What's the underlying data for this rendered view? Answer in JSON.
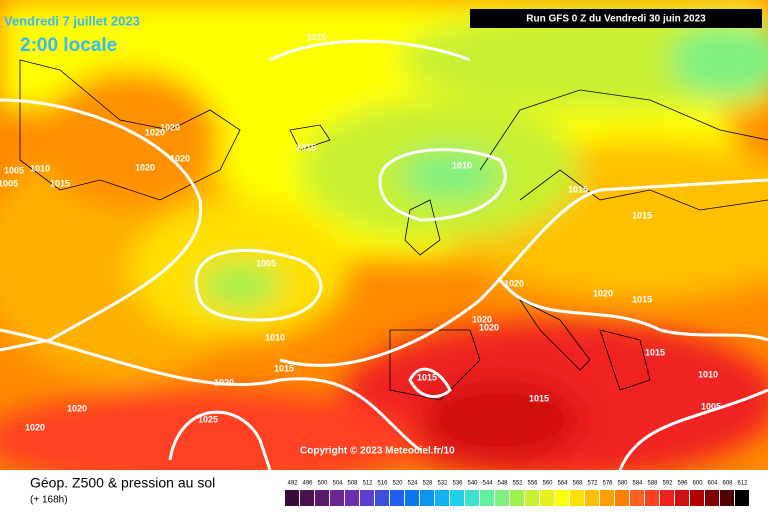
{
  "header": {
    "date": "Vendredi 7 juillet 2023",
    "time": "2:00 locale",
    "run": "Run GFS 0 Z du Vendredi 30 juin 2023"
  },
  "copyright": "Copyright © 2023 Meteociel.fr/10",
  "footer": {
    "title": "Géop. Z500 & pression au sol",
    "subtitle": "(+ 168h)"
  },
  "colorbar": {
    "ticks": [
      492,
      496,
      500,
      504,
      508,
      512,
      516,
      520,
      524,
      528,
      532,
      536,
      540,
      544,
      548,
      552,
      556,
      560,
      564,
      568,
      572,
      576,
      580,
      584,
      588,
      592,
      596,
      600,
      604,
      608,
      612
    ],
    "colors": [
      "#3a0a3a",
      "#4b1050",
      "#5a1a6e",
      "#6a2590",
      "#6a30b0",
      "#5a3fd0",
      "#3c4ee0",
      "#1e5ef0",
      "#0a78f0",
      "#0a96f0",
      "#10b4f0",
      "#20d0e8",
      "#40e0c8",
      "#60f0a0",
      "#80f080",
      "#a0f050",
      "#c8f030",
      "#e8f020",
      "#ffff00",
      "#ffe000",
      "#ffc000",
      "#ffa000",
      "#ff8000",
      "#ff6020",
      "#ff4020",
      "#f02020",
      "#d01010",
      "#b00000",
      "#800000",
      "#500000",
      "#000000"
    ]
  },
  "isobar_labels": [
    "1015",
    "1020",
    "1020",
    "1020",
    "1020",
    "1005",
    "1010",
    "1005",
    "1015",
    "1015",
    "1010",
    "1015",
    "1015",
    "1005",
    "1020",
    "1020",
    "1020",
    "1020",
    "1015",
    "1010",
    "1015",
    "1015",
    "1010",
    "1020",
    "1015",
    "1015",
    "1005",
    "1020",
    "1020",
    "1025"
  ]
}
